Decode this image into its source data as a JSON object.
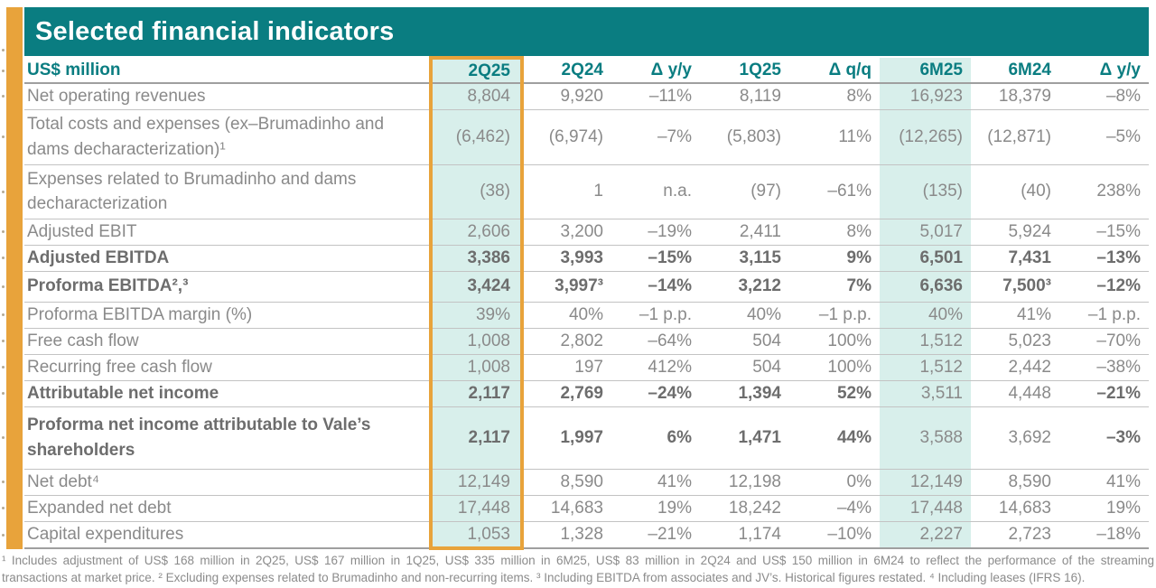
{
  "title": "Selected financial indicators",
  "colors": {
    "teal": "#0a7d81",
    "teal_tint": "#d8efeb",
    "gold": "#e8a33b",
    "text_gray": "#8a8a8a"
  },
  "table": {
    "columns": [
      "US$ million",
      "2Q25",
      "2Q24",
      "Δ y/y",
      "1Q25",
      "Δ q/q",
      "6M25",
      "6M24",
      "Δ y/y"
    ],
    "highlight_column": "2Q25",
    "tinted_column": "6M25",
    "rows": [
      {
        "label": "Net operating revenues",
        "bold": false,
        "cells": [
          "8,804",
          "9,920",
          "–11%",
          "8,119",
          "8%",
          "16,923",
          "18,379",
          "–8%"
        ]
      },
      {
        "label": "Total costs and expenses (ex–Brumadinho and dams decharacterization)¹",
        "bold": false,
        "cells": [
          "(6,462)",
          "(6,974)",
          "–7%",
          "(5,803)",
          "11%",
          "(12,265)",
          "(12,871)",
          "–5%"
        ]
      },
      {
        "label": "Expenses related to Brumadinho and dams decharacterization",
        "bold": false,
        "cells": [
          "(38)",
          "1",
          "n.a.",
          "(97)",
          "–61%",
          "(135)",
          "(40)",
          "238%"
        ]
      },
      {
        "label": "Adjusted EBIT",
        "bold": false,
        "cells": [
          "2,606",
          "3,200",
          "–19%",
          "2,411",
          "8%",
          "5,017",
          "5,924",
          "–15%"
        ]
      },
      {
        "label": "Adjusted EBITDA",
        "bold": true,
        "cells": [
          "3,386",
          "3,993",
          "–15%",
          "3,115",
          "9%",
          "6,501",
          "7,431",
          "–13%"
        ]
      },
      {
        "label": "Proforma EBITDA²,³",
        "bold": true,
        "cells": [
          "3,424",
          "3,997³",
          "–14%",
          "3,212",
          "7%",
          "6,636",
          "7,500³",
          "–12%"
        ]
      },
      {
        "label": "Proforma EBITDA margin (%)",
        "bold": false,
        "cells": [
          "39%",
          "40%",
          "–1 p.p.",
          "40%",
          "–1 p.p.",
          "40%",
          "41%",
          "–1 p.p."
        ]
      },
      {
        "label": "Free cash flow",
        "bold": false,
        "cells": [
          "1,008",
          "2,802",
          "–64%",
          "504",
          "100%",
          "1,512",
          "5,023",
          "–70%"
        ]
      },
      {
        "label": "Recurring free cash flow",
        "bold": false,
        "cells": [
          "1,008",
          "197",
          "412%",
          "504",
          "100%",
          "1,512",
          "2,442",
          "–38%"
        ]
      },
      {
        "label": "Attributable net income",
        "bold": true,
        "regular_cells": [
          5,
          6
        ],
        "cells": [
          "2,117",
          "2,769",
          "–24%",
          "1,394",
          "52%",
          "3,511",
          "4,448",
          "–21%"
        ]
      },
      {
        "label": "Proforma net income attributable to Vale’s shareholders",
        "bold": true,
        "regular_cells": [
          5,
          6
        ],
        "cells": [
          "2,117",
          "1,997",
          "6%",
          "1,471",
          "44%",
          "3,588",
          "3,692",
          "–3%"
        ]
      },
      {
        "label": "Net debt⁴",
        "bold": false,
        "cells": [
          "12,149",
          "8,590",
          "41%",
          "12,198",
          "0%",
          "12,149",
          "8,590",
          "41%"
        ]
      },
      {
        "label": "Expanded net debt",
        "bold": false,
        "cells": [
          "17,448",
          "14,683",
          "19%",
          "18,242",
          "–4%",
          "17,448",
          "14,683",
          "19%"
        ]
      },
      {
        "label": "Capital expenditures",
        "bold": false,
        "cells": [
          "1,053",
          "1,328",
          "–21%",
          "1,174",
          "–10%",
          "2,227",
          "2,723",
          "–18%"
        ]
      }
    ]
  },
  "footnotes": [
    "¹ Includes adjustment of US$ 168 million in 2Q25, US$ 167 million in 1Q25, US$ 335 million in 6M25, US$ 83 million in 2Q24 and US$ 150 million in 6M24 to reflect the performance of the streaming",
    "transactions at market price. ² Excluding expenses related to Brumadinho and non-recurring items. ³ Including EBITDA from associates and JV’s. Historical figures restated. ⁴ Including leases (IFRS 16)."
  ]
}
